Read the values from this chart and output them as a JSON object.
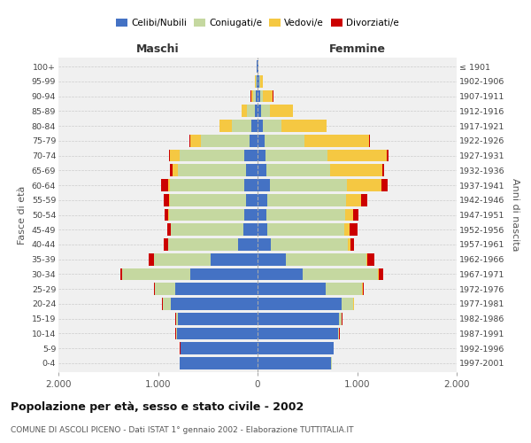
{
  "age_groups": [
    "0-4",
    "5-9",
    "10-14",
    "15-19",
    "20-24",
    "25-29",
    "30-34",
    "35-39",
    "40-44",
    "45-49",
    "50-54",
    "55-59",
    "60-64",
    "65-69",
    "70-74",
    "75-79",
    "80-84",
    "85-89",
    "90-94",
    "95-99",
    "100+"
  ],
  "birth_years": [
    "1997-2001",
    "1992-1996",
    "1987-1991",
    "1982-1986",
    "1977-1981",
    "1972-1976",
    "1967-1971",
    "1962-1966",
    "1957-1961",
    "1952-1956",
    "1947-1951",
    "1942-1946",
    "1937-1941",
    "1932-1936",
    "1927-1931",
    "1922-1926",
    "1917-1921",
    "1912-1916",
    "1907-1911",
    "1902-1906",
    "≤ 1901"
  ],
  "maschi": {
    "celibi": [
      780,
      770,
      810,
      800,
      870,
      830,
      680,
      470,
      200,
      140,
      130,
      120,
      130,
      120,
      130,
      80,
      60,
      30,
      15,
      10,
      5
    ],
    "coniugati": [
      3,
      5,
      10,
      20,
      80,
      200,
      680,
      570,
      700,
      730,
      760,
      760,
      750,
      680,
      650,
      490,
      200,
      80,
      30,
      10,
      5
    ],
    "vedovi": [
      2,
      2,
      2,
      2,
      5,
      5,
      2,
      2,
      2,
      3,
      5,
      10,
      20,
      50,
      100,
      110,
      120,
      50,
      20,
      5,
      2
    ],
    "divorziati": [
      1,
      1,
      1,
      2,
      3,
      5,
      20,
      50,
      40,
      30,
      40,
      50,
      70,
      30,
      8,
      5,
      5,
      3,
      2,
      1,
      1
    ]
  },
  "femmine": {
    "nubili": [
      740,
      760,
      810,
      820,
      840,
      680,
      450,
      280,
      130,
      100,
      90,
      100,
      120,
      90,
      80,
      70,
      50,
      35,
      25,
      15,
      5
    ],
    "coniugate": [
      3,
      5,
      10,
      25,
      120,
      370,
      760,
      810,
      780,
      770,
      790,
      790,
      780,
      640,
      620,
      400,
      190,
      90,
      30,
      10,
      3
    ],
    "vedove": [
      2,
      2,
      2,
      3,
      5,
      5,
      5,
      10,
      25,
      50,
      80,
      150,
      340,
      520,
      600,
      650,
      450,
      230,
      100,
      30,
      3
    ],
    "divorziate": [
      1,
      1,
      1,
      2,
      5,
      10,
      50,
      70,
      30,
      80,
      50,
      60,
      70,
      20,
      15,
      10,
      5,
      3,
      2,
      1,
      1
    ]
  },
  "colors": {
    "celibi_nubili": "#4472C4",
    "coniugati": "#C5D8A0",
    "vedovi": "#F5C842",
    "divorziati": "#CC0000"
  },
  "title": "Popolazione per età, sesso e stato civile - 2002",
  "subtitle": "COMUNE DI ASCOLI PICENO - Dati ISTAT 1° gennaio 2002 - Elaborazione TUTTITALIA.IT",
  "xlabel_left": "Maschi",
  "xlabel_right": "Femmine",
  "ylabel_left": "Fasce di età",
  "ylabel_right": "Anni di nascita",
  "xlim": 2000,
  "background_color": "#ffffff",
  "plot_bg": "#f0f0f0"
}
